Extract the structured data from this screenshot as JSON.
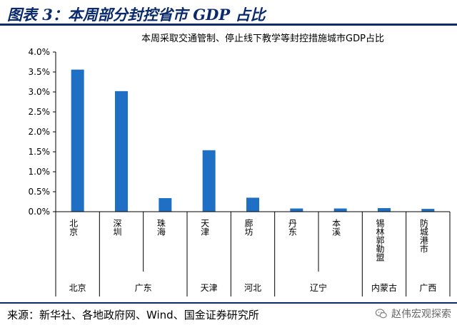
{
  "header": {
    "title": "图表 3：本周部分封控省市 GDP 占比"
  },
  "chart_data": {
    "type": "bar",
    "title": "本周采取交通管制、停止线下教学等封控措施城市GDP占比",
    "categories": [
      "北京",
      "深圳",
      "珠海",
      "天津",
      "廊坊",
      "丹东",
      "本溪",
      "锡林郭勒盟",
      "防城港市"
    ],
    "values": [
      3.56,
      3.02,
      0.34,
      1.54,
      0.35,
      0.08,
      0.08,
      0.09,
      0.07
    ],
    "provinces": [
      {
        "label": "北京",
        "span": 1
      },
      {
        "label": "广东",
        "span": 2
      },
      {
        "label": "天津",
        "span": 1
      },
      {
        "label": "河北",
        "span": 1
      },
      {
        "label": "辽宁",
        "span": 2
      },
      {
        "label": "内蒙古",
        "span": 1
      },
      {
        "label": "广西",
        "span": 1
      }
    ],
    "y_ticks": [
      "4.0%",
      "3.5%",
      "3.0%",
      "2.5%",
      "2.0%",
      "1.5%",
      "1.0%",
      "0.5%",
      "0.0%"
    ],
    "ylim": [
      0,
      4.0
    ],
    "xlabel": "",
    "ylabel": "",
    "grid": false,
    "bar_color": "#1f6fc5"
  },
  "footer": {
    "source": "来源：新华社、各地政府网、Wind、国金证券研究所",
    "watermark": "赵伟宏观探索",
    "watermark_icon": "wechat-icon"
  }
}
